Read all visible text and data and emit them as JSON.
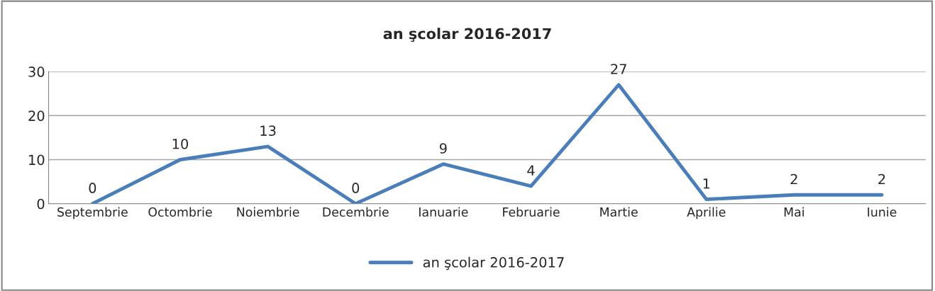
{
  "chart_data": {
    "type": "line",
    "title": "an şcolar 2016-2017",
    "categories": [
      "Septembrie",
      "Octombrie",
      "Noiembrie",
      "Decembrie",
      "Ianuarie",
      "Februarie",
      "Martie",
      "Aprilie",
      "Mai",
      "Iunie"
    ],
    "series": [
      {
        "name": "an şcolar 2016-2017",
        "color": "#4a7ebb",
        "values": [
          0,
          10,
          13,
          0,
          9,
          4,
          27,
          1,
          2,
          2
        ]
      }
    ],
    "ylim": [
      0,
      30
    ],
    "yticks": [
      0,
      10,
      20,
      30
    ],
    "grid": "y",
    "legend": "bottom",
    "data_labels": true,
    "marker": "none",
    "line_style": "solid"
  }
}
